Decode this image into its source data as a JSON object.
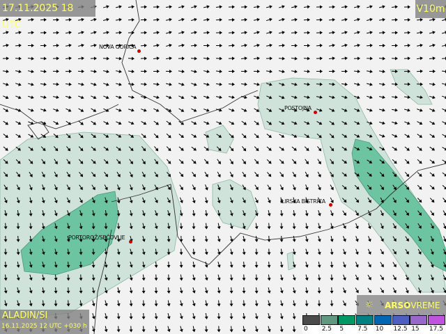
{
  "header": {
    "valid_time": "17.11.2025 18 UTC",
    "variable": "V10m"
  },
  "model": {
    "name": "ALADIN/SI",
    "run": "16.11.2025 12 UTC +030 h"
  },
  "logo": {
    "brand_bold": "ARSO",
    "brand": "VREME",
    "icon": "sun-icon"
  },
  "cities": [
    {
      "name": "NOVA GORICA"
    },
    {
      "name": "POSTOJNA"
    },
    {
      "name": "ILIRSKA BISTRICA"
    },
    {
      "name": "PORTOROŽ/SEČOVLJE"
    }
  ],
  "legend": {
    "unit_ticks": [
      "0",
      "2.5",
      "5",
      "7.5",
      "10",
      "12.5",
      "15",
      "17.5"
    ],
    "colors": [
      "#4a4a4a",
      "#5f9a80",
      "#009966",
      "#008080",
      "#0066b3",
      "#4d5fc0",
      "#9966cc",
      "#c052e0"
    ]
  },
  "colors": {
    "land": "#f2f2f2",
    "wind_light": "#cfe3da",
    "wind_mid": "#6cc4a0",
    "marker": "#d00000",
    "label": "#ffff66"
  }
}
